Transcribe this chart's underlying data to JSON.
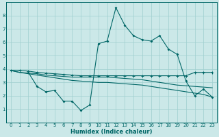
{
  "xlabel": "Humidex (Indice chaleur)",
  "bg_color": "#cbe8e8",
  "grid_color": "#9fcfcf",
  "line_color": "#006666",
  "xlim": [
    -0.5,
    23.5
  ],
  "ylim": [
    0,
    9
  ],
  "xticks": [
    0,
    1,
    2,
    3,
    4,
    5,
    6,
    7,
    8,
    9,
    10,
    11,
    12,
    13,
    14,
    15,
    16,
    17,
    18,
    19,
    20,
    21,
    22,
    23
  ],
  "yticks": [
    1,
    2,
    3,
    4,
    5,
    6,
    7,
    8
  ],
  "line1_x": [
    0,
    1,
    2,
    3,
    4,
    5,
    6,
    7,
    8,
    9,
    10,
    11,
    12,
    13,
    14,
    15,
    16,
    17,
    18,
    19,
    20,
    21,
    22,
    23
  ],
  "line1_y": [
    3.9,
    3.9,
    3.85,
    3.75,
    3.7,
    3.65,
    3.6,
    3.55,
    3.5,
    3.5,
    3.5,
    3.5,
    3.5,
    3.5,
    3.5,
    3.5,
    3.5,
    3.5,
    3.5,
    3.5,
    3.5,
    3.75,
    3.75,
    3.75
  ],
  "line2_x": [
    0,
    1,
    2,
    3,
    4,
    5,
    6,
    7,
    8,
    9,
    10,
    11,
    12,
    13,
    14,
    15,
    16,
    17,
    18,
    19,
    20,
    21,
    22,
    23
  ],
  "line2_y": [
    3.9,
    3.75,
    3.7,
    3.65,
    3.55,
    3.5,
    3.45,
    3.4,
    3.4,
    3.4,
    3.4,
    3.4,
    3.35,
    3.3,
    3.25,
    3.2,
    3.1,
    3.0,
    2.9,
    2.8,
    2.75,
    2.7,
    2.65,
    2.6
  ],
  "line3_x": [
    0,
    1,
    2,
    3,
    4,
    5,
    6,
    7,
    8,
    9,
    10,
    11,
    12,
    13,
    14,
    15,
    16,
    17,
    18,
    19,
    20,
    21,
    22,
    23
  ],
  "line3_y": [
    3.9,
    3.75,
    3.65,
    3.55,
    3.45,
    3.35,
    3.25,
    3.15,
    3.1,
    3.05,
    3.0,
    3.0,
    2.95,
    2.9,
    2.85,
    2.8,
    2.7,
    2.6,
    2.5,
    2.4,
    2.3,
    2.2,
    2.1,
    1.9
  ],
  "line4_x": [
    2,
    3,
    4,
    5,
    6,
    7,
    8,
    9,
    10,
    11,
    12,
    13,
    14,
    15,
    16,
    17,
    18,
    19,
    20,
    21,
    22,
    23
  ],
  "line4_y": [
    3.75,
    2.7,
    2.3,
    2.4,
    1.6,
    1.6,
    0.9,
    1.3,
    5.9,
    6.1,
    8.6,
    7.3,
    6.5,
    6.2,
    6.1,
    6.5,
    5.5,
    5.1,
    3.1,
    2.0,
    2.5,
    1.9
  ]
}
